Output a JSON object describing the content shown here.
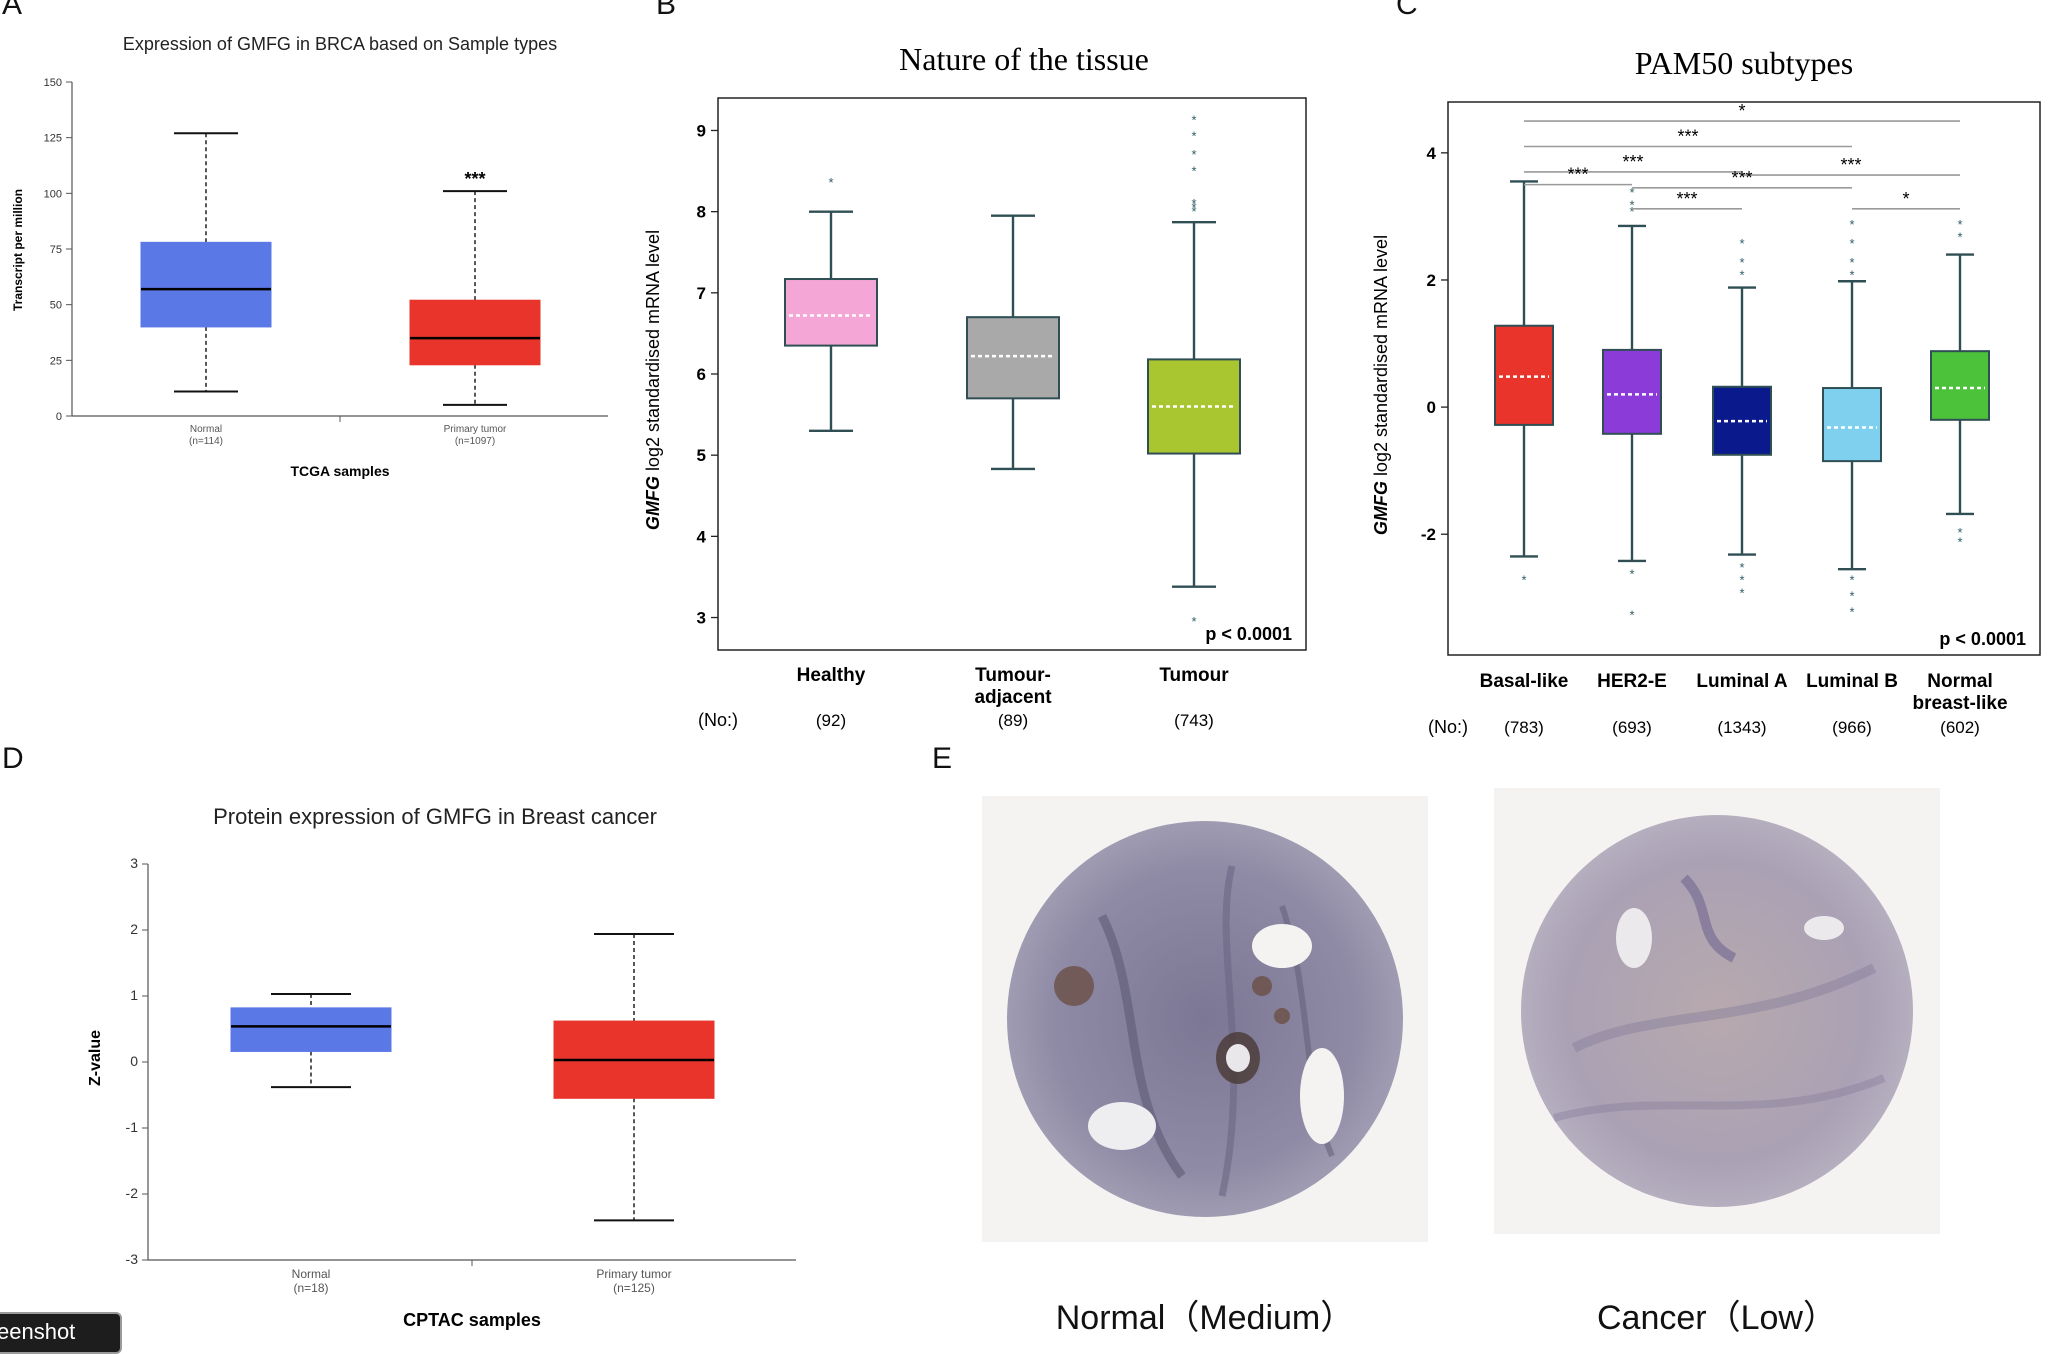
{
  "panel_letters": {
    "a": "A",
    "b": "B",
    "c": "C",
    "d": "D",
    "e": "E"
  },
  "significance": {
    "three": "***",
    "one": "*",
    "outlier": "*"
  },
  "chart_data": [
    {
      "id": "A",
      "type": "box",
      "title": "Expression of GMFG in BRCA based on Sample types",
      "ylabel": "Transcript per million",
      "xlabel": "TCGA samples",
      "ylim": [
        0,
        150
      ],
      "yticks": [
        0,
        25,
        50,
        75,
        100,
        125,
        150
      ],
      "colors": [
        "#5a78e6",
        "#e8342a"
      ],
      "categories": [
        {
          "name": "Normal",
          "n": "(n=114)",
          "min": 11,
          "q1": 40,
          "median": 57,
          "q3": 78,
          "max": 127,
          "sig": ""
        },
        {
          "name": "Primary tumor",
          "n": "(n=1097)",
          "min": 5,
          "q1": 23,
          "median": 35,
          "q3": 52,
          "max": 101,
          "sig": "***"
        }
      ]
    },
    {
      "id": "B",
      "type": "box",
      "title": "Nature of the tissue",
      "ylabel_gene": "GMFG",
      "ylabel_rest": " log2 standardised mRNA level",
      "ylim": [
        2.6,
        9.4
      ],
      "yticks": [
        3,
        4,
        5,
        6,
        7,
        8,
        9
      ],
      "pvalue": "p < 0.0001",
      "count_label": "(No:)",
      "categories": [
        {
          "name": "Healthy",
          "name2": "",
          "n": "(92)",
          "color": "#f4a7d6",
          "min": 5.3,
          "q1": 6.35,
          "median": 6.72,
          "q3": 7.17,
          "max": 8.0,
          "outliers": [
            8.38
          ]
        },
        {
          "name": "Tumour-",
          "name2": "adjacent",
          "n": "(89)",
          "color": "#a9a9a9",
          "min": 4.83,
          "q1": 5.7,
          "median": 6.22,
          "q3": 6.7,
          "max": 7.95,
          "outliers": []
        },
        {
          "name": "Tumour",
          "name2": "",
          "n": "(743)",
          "color": "#a9c630",
          "min": 3.38,
          "q1": 5.02,
          "median": 5.6,
          "q3": 6.18,
          "max": 7.87,
          "outliers": [
            9.15,
            8.95,
            8.72,
            8.52,
            8.12,
            8.07,
            8.02,
            2.97
          ]
        }
      ]
    },
    {
      "id": "C",
      "type": "box",
      "title": "PAM50 subtypes",
      "ylabel_gene": "GMFG",
      "ylabel_rest": " log2 standardised mRNA level",
      "ylim": [
        -3.9,
        4.8
      ],
      "yticks": [
        -2,
        0,
        2,
        4
      ],
      "pvalue": "p < 0.0001",
      "count_label": "(No:)",
      "categories": [
        {
          "name": "Basal-like",
          "name2": "",
          "n": "(783)",
          "color": "#e8342a",
          "min": -2.35,
          "q1": -0.28,
          "median": 0.48,
          "q3": 1.28,
          "max": 3.55,
          "outliers": [
            -2.7
          ]
        },
        {
          "name": "HER2-E",
          "name2": "",
          "n": "(693)",
          "color": "#8a3bd8",
          "min": -2.42,
          "q1": -0.42,
          "median": 0.2,
          "q3": 0.9,
          "max": 2.85,
          "outliers": [
            3.1,
            3.2,
            3.4,
            -2.6,
            -3.25
          ]
        },
        {
          "name": "Luminal A",
          "name2": "",
          "n": "(1343)",
          "color": "#0a1a8c",
          "min": -2.32,
          "q1": -0.75,
          "median": -0.22,
          "q3": 0.32,
          "max": 1.88,
          "outliers": [
            2.1,
            2.3,
            2.6,
            -2.5,
            -2.7,
            -2.9
          ]
        },
        {
          "name": "Luminal B",
          "name2": "",
          "n": "(966)",
          "color": "#7fd0ee",
          "min": -2.55,
          "q1": -0.85,
          "median": -0.32,
          "q3": 0.3,
          "max": 1.98,
          "outliers": [
            2.1,
            2.3,
            2.6,
            2.9,
            -2.7,
            -2.95,
            -3.2
          ]
        },
        {
          "name": "Normal",
          "name2": "breast-like",
          "n": "(602)",
          "color": "#4cc23b",
          "min": -1.68,
          "q1": -0.2,
          "median": 0.3,
          "q3": 0.88,
          "max": 2.4,
          "outliers": [
            2.7,
            2.9,
            -1.95,
            -2.1
          ]
        }
      ],
      "comparisons": [
        {
          "from": 0,
          "to": 4,
          "y": 4.5,
          "sig": "*"
        },
        {
          "from": 0,
          "to": 3,
          "y": 4.1,
          "sig": "***"
        },
        {
          "from": 0,
          "to": 2,
          "y": 3.7,
          "sig": "***"
        },
        {
          "from": 0,
          "to": 1,
          "y": 3.5,
          "sig": "***"
        },
        {
          "from": 2,
          "to": 4,
          "y": 3.65,
          "sig": "***"
        },
        {
          "from": 1,
          "to": 3,
          "y": 3.45,
          "sig": "***"
        },
        {
          "from": 1,
          "to": 2,
          "y": 3.12,
          "sig": "***"
        },
        {
          "from": 3,
          "to": 4,
          "y": 3.12,
          "sig": "*"
        }
      ]
    },
    {
      "id": "D",
      "type": "box",
      "title": "Protein expression of GMFG in Breast cancer",
      "ylabel": "Z-value",
      "xlabel": "CPTAC samples",
      "ylim": [
        -3,
        3
      ],
      "yticks": [
        -3,
        -2,
        -1,
        0,
        1,
        2,
        3
      ],
      "colors": [
        "#5a78e6",
        "#e8342a"
      ],
      "categories": [
        {
          "name": "Normal",
          "n": "(n=18)",
          "min": -0.38,
          "q1": 0.16,
          "median": 0.54,
          "q3": 0.82,
          "max": 1.03
        },
        {
          "name": "Primary tumor",
          "n": "(n=125)",
          "min": -2.4,
          "q1": -0.55,
          "median": 0.03,
          "q3": 0.62,
          "max": 1.94
        }
      ]
    }
  ],
  "tissue_images": {
    "normal_caption": "Normal（Medium）",
    "cancer_caption": "Cancer（Low）"
  },
  "snapshot_button": "Screenshot"
}
